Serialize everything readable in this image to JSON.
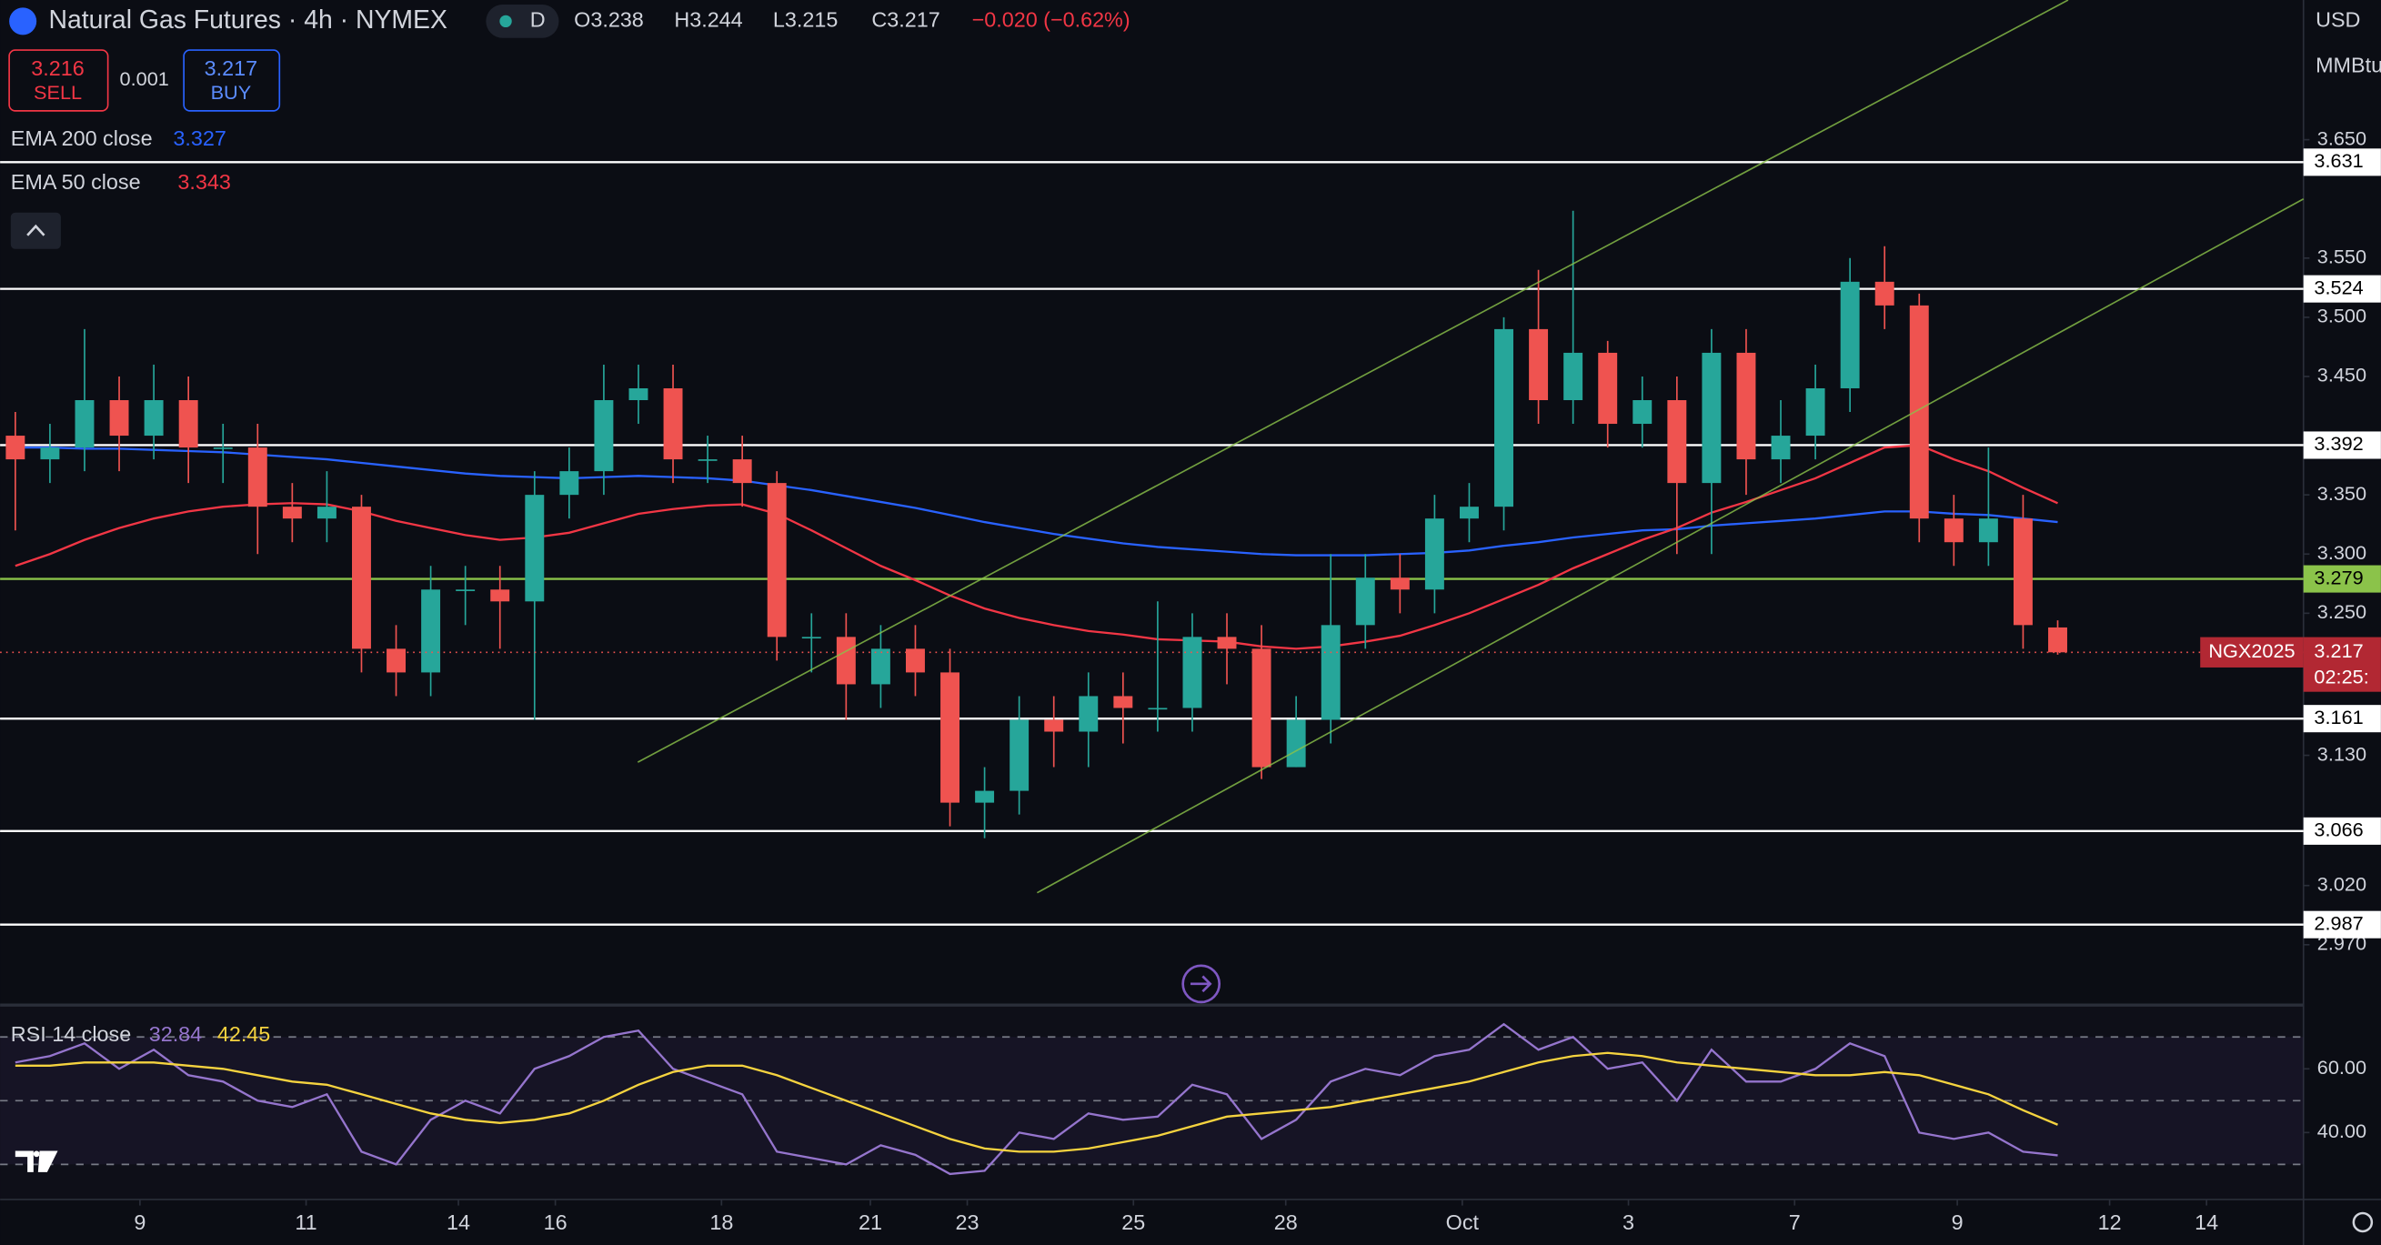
{
  "header": {
    "title": "Natural Gas Futures · 4h · NYMEX",
    "badge": "D",
    "open": "O3.238",
    "high": "H3.244",
    "low": "L3.215",
    "close": "C3.217",
    "change": "−0.020 (−0.62%)",
    "sell_price": "3.216",
    "sell": "SELL",
    "spread": "0.001",
    "buy_price": "3.217",
    "buy": "BUY",
    "currency": "USD",
    "unit": "MMBtu"
  },
  "chart_data": [
    {
      "type": "candlestick",
      "up_color": "#26a69a",
      "down_color": "#ef5350",
      "x": [
        0,
        1,
        2,
        3,
        4,
        5,
        6,
        7,
        8,
        9,
        10,
        11,
        12,
        13,
        14,
        15,
        16,
        17,
        18,
        19,
        20,
        21,
        22,
        23,
        24,
        25,
        26,
        27,
        28,
        29,
        30,
        31,
        32,
        33,
        34,
        35,
        36,
        37,
        38,
        39,
        40,
        41,
        42,
        43,
        44,
        45,
        46,
        47,
        48,
        49,
        50,
        51,
        52,
        53,
        54,
        55,
        56,
        57,
        58,
        59
      ],
      "open": [
        3.4,
        3.38,
        3.39,
        3.43,
        3.4,
        3.43,
        3.39,
        3.39,
        3.34,
        3.33,
        3.34,
        3.22,
        3.2,
        3.27,
        3.27,
        3.26,
        3.35,
        3.37,
        3.43,
        3.44,
        3.38,
        3.38,
        3.36,
        3.23,
        3.23,
        3.19,
        3.22,
        3.2,
        3.09,
        3.1,
        3.16,
        3.15,
        3.18,
        3.17,
        3.17,
        3.23,
        3.22,
        3.12,
        3.16,
        3.24,
        3.28,
        3.27,
        3.33,
        3.34,
        3.49,
        3.43,
        3.47,
        3.41,
        3.43,
        3.36,
        3.47,
        3.38,
        3.4,
        3.44,
        3.53,
        3.51,
        3.33,
        3.31,
        3.33,
        3.238
      ],
      "high": [
        3.42,
        3.41,
        3.49,
        3.45,
        3.46,
        3.45,
        3.41,
        3.41,
        3.36,
        3.37,
        3.35,
        3.24,
        3.29,
        3.29,
        3.29,
        3.37,
        3.39,
        3.46,
        3.46,
        3.46,
        3.4,
        3.4,
        3.37,
        3.25,
        3.25,
        3.24,
        3.24,
        3.22,
        3.12,
        3.18,
        3.18,
        3.2,
        3.2,
        3.26,
        3.25,
        3.25,
        3.24,
        3.18,
        3.3,
        3.3,
        3.3,
        3.35,
        3.36,
        3.5,
        3.54,
        3.59,
        3.48,
        3.45,
        3.45,
        3.49,
        3.49,
        3.43,
        3.46,
        3.55,
        3.56,
        3.52,
        3.35,
        3.39,
        3.35,
        3.244
      ],
      "low": [
        3.32,
        3.36,
        3.37,
        3.37,
        3.38,
        3.36,
        3.36,
        3.3,
        3.31,
        3.31,
        3.2,
        3.18,
        3.18,
        3.24,
        3.22,
        3.16,
        3.33,
        3.35,
        3.41,
        3.36,
        3.36,
        3.34,
        3.21,
        3.2,
        3.16,
        3.17,
        3.18,
        3.07,
        3.06,
        3.08,
        3.12,
        3.12,
        3.14,
        3.15,
        3.15,
        3.19,
        3.11,
        3.12,
        3.14,
        3.22,
        3.25,
        3.25,
        3.31,
        3.32,
        3.41,
        3.41,
        3.39,
        3.39,
        3.3,
        3.3,
        3.35,
        3.36,
        3.38,
        3.42,
        3.49,
        3.31,
        3.29,
        3.29,
        3.22,
        3.215
      ],
      "close": [
        3.38,
        3.39,
        3.43,
        3.4,
        3.43,
        3.39,
        3.39,
        3.34,
        3.33,
        3.34,
        3.22,
        3.2,
        3.27,
        3.27,
        3.26,
        3.35,
        3.37,
        3.43,
        3.44,
        3.38,
        3.38,
        3.36,
        3.23,
        3.23,
        3.19,
        3.22,
        3.2,
        3.09,
        3.1,
        3.16,
        3.15,
        3.18,
        3.17,
        3.17,
        3.23,
        3.22,
        3.12,
        3.16,
        3.24,
        3.28,
        3.27,
        3.33,
        3.34,
        3.49,
        3.43,
        3.47,
        3.41,
        3.43,
        3.36,
        3.47,
        3.38,
        3.4,
        3.44,
        3.53,
        3.51,
        3.33,
        3.31,
        3.33,
        3.24,
        3.217
      ],
      "series": [
        {
          "name": "EMA 200 close",
          "color": "#2962ff",
          "last_value": 3.327,
          "values": [
            3.39,
            3.39,
            3.389,
            3.389,
            3.388,
            3.387,
            3.386,
            3.384,
            3.382,
            3.38,
            3.377,
            3.374,
            3.371,
            3.368,
            3.366,
            3.365,
            3.364,
            3.365,
            3.366,
            3.365,
            3.364,
            3.362,
            3.358,
            3.354,
            3.349,
            3.344,
            3.339,
            3.333,
            3.327,
            3.322,
            3.317,
            3.313,
            3.309,
            3.306,
            3.304,
            3.302,
            3.3,
            3.299,
            3.299,
            3.299,
            3.3,
            3.301,
            3.303,
            3.307,
            3.31,
            3.314,
            3.317,
            3.32,
            3.321,
            3.324,
            3.326,
            3.328,
            3.33,
            3.333,
            3.336,
            3.336,
            3.334,
            3.333,
            3.33,
            3.327
          ]
        },
        {
          "name": "EMA 50 close",
          "color": "#f23645",
          "last_value": 3.343,
          "values": [
            3.29,
            3.3,
            3.312,
            3.322,
            3.33,
            3.336,
            3.34,
            3.342,
            3.343,
            3.342,
            3.336,
            3.328,
            3.322,
            3.316,
            3.312,
            3.314,
            3.318,
            3.326,
            3.334,
            3.338,
            3.341,
            3.342,
            3.334,
            3.32,
            3.305,
            3.29,
            3.278,
            3.265,
            3.254,
            3.246,
            3.24,
            3.235,
            3.232,
            3.228,
            3.227,
            3.226,
            3.222,
            3.22,
            3.222,
            3.226,
            3.231,
            3.24,
            3.25,
            3.262,
            3.274,
            3.288,
            3.3,
            3.312,
            3.322,
            3.335,
            3.344,
            3.354,
            3.364,
            3.377,
            3.39,
            3.392,
            3.38,
            3.37,
            3.356,
            3.343
          ]
        }
      ],
      "levels": [
        3.631,
        3.524,
        3.392,
        3.279,
        3.161,
        3.066,
        2.987
      ],
      "level_colors": [
        "#ffffff",
        "#ffffff",
        "#ffffff",
        "#8bc34a",
        "#ffffff",
        "#ffffff",
        "#ffffff"
      ],
      "last_price": 3.217,
      "last_label": "NGX2025",
      "countdown": "02:25:",
      "xlim": [
        -0.44,
        66.1
      ],
      "ylim": [
        2.919,
        3.768
      ],
      "yticks": [
        {
          "value": 3.65,
          "label": "3.650"
        },
        {
          "value": 3.55,
          "label": "3.550"
        },
        {
          "value": 3.5,
          "label": "3.500"
        },
        {
          "value": 3.45,
          "label": "3.450"
        },
        {
          "value": 3.35,
          "label": "3.350"
        },
        {
          "value": 3.3,
          "label": "3.300"
        },
        {
          "value": 3.25,
          "label": "3.250"
        },
        {
          "value": 3.13,
          "label": "3.130"
        },
        {
          "value": 3.02,
          "label": "3.020"
        },
        {
          "value": 2.97,
          "label": "2.970"
        }
      ],
      "xticks": [
        {
          "value": 3.6,
          "label": "9"
        },
        {
          "value": 8.4,
          "label": "11"
        },
        {
          "value": 12.8,
          "label": "14"
        },
        {
          "value": 15.6,
          "label": "16"
        },
        {
          "value": 20.4,
          "label": "18"
        },
        {
          "value": 24.7,
          "label": "21"
        },
        {
          "value": 27.5,
          "label": "23"
        },
        {
          "value": 32.3,
          "label": "25"
        },
        {
          "value": 36.7,
          "label": "28"
        },
        {
          "value": 41.8,
          "label": "Oct"
        },
        {
          "value": 46.6,
          "label": "3"
        },
        {
          "value": 51.4,
          "label": "7"
        },
        {
          "value": 56.1,
          "label": "9"
        },
        {
          "value": 60.5,
          "label": "12"
        },
        {
          "value": 63.3,
          "label": "14"
        }
      ]
    },
    {
      "type": "line",
      "title": "RSI 14 close",
      "x": [
        0,
        1,
        2,
        3,
        4,
        5,
        6,
        7,
        8,
        9,
        10,
        11,
        12,
        13,
        14,
        15,
        16,
        17,
        18,
        19,
        20,
        21,
        22,
        23,
        24,
        25,
        26,
        27,
        28,
        29,
        30,
        31,
        32,
        33,
        34,
        35,
        36,
        37,
        38,
        39,
        40,
        41,
        42,
        43,
        44,
        45,
        46,
        47,
        48,
        49,
        50,
        51,
        52,
        53,
        54,
        55,
        56,
        57,
        58,
        59
      ],
      "series": [
        {
          "color": "#9575cd",
          "last_value": 32.84,
          "values": [
            62,
            64,
            68,
            60,
            66,
            58,
            56,
            50,
            48,
            52,
            34,
            30,
            44,
            50,
            46,
            60,
            64,
            70,
            72,
            60,
            56,
            52,
            34,
            32,
            30,
            36,
            33,
            27,
            28,
            40,
            38,
            46,
            44,
            45,
            55,
            52,
            38,
            44,
            56,
            60,
            58,
            64,
            66,
            74,
            66,
            70,
            60,
            62,
            50,
            66,
            56,
            56,
            60,
            68,
            64,
            40,
            38,
            40,
            34,
            32.84
          ]
        },
        {
          "color": "#f5d33f",
          "last_value": 42.45,
          "values": [
            61,
            61,
            62,
            62,
            62,
            61,
            60,
            58,
            56,
            55,
            52,
            49,
            46,
            44,
            43,
            44,
            46,
            50,
            55,
            59,
            61,
            61,
            58,
            54,
            50,
            46,
            42,
            38,
            35,
            34,
            34,
            35,
            37,
            39,
            42,
            45,
            46,
            47,
            48,
            50,
            52,
            54,
            56,
            59,
            62,
            64,
            65,
            64,
            62,
            61,
            60,
            59,
            58,
            58,
            59,
            58,
            55,
            52,
            47,
            42.45
          ]
        }
      ],
      "hlines": [
        70,
        50,
        30
      ],
      "xlim": [
        -0.44,
        66.1
      ],
      "ylim": [
        19,
        80
      ],
      "yticks": [
        {
          "value": 60,
          "label": "60.00"
        },
        {
          "value": 40,
          "label": "40.00"
        }
      ]
    }
  ]
}
